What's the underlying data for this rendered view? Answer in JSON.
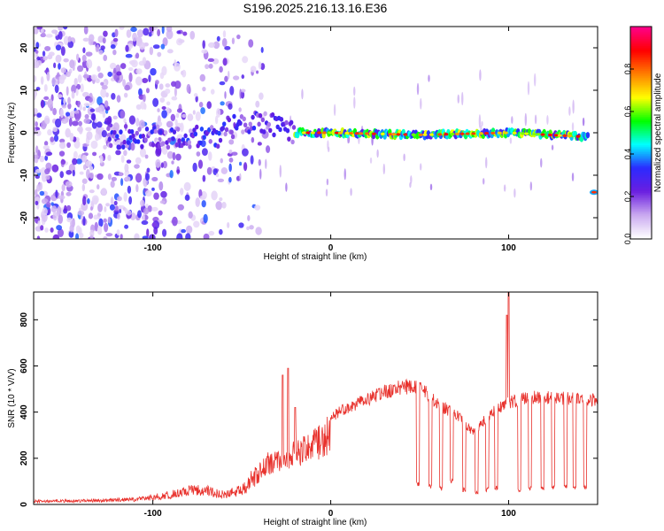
{
  "title": "S196.2025.216.13.16.E36",
  "chart_data": [
    {
      "type": "heatmap",
      "title": "S196.2025.216.13.16.E36",
      "xlabel": "Height of straight line (km)",
      "ylabel": "Frequency (Hz)",
      "xlim": [
        -167,
        150
      ],
      "ylim": [
        -25,
        25
      ],
      "x_ticks": [
        -100,
        0,
        100
      ],
      "y_ticks": [
        -20,
        -10,
        0,
        10,
        20
      ],
      "grid": false,
      "colorbar": {
        "label": "Normalized spectral amplitude",
        "range": [
          0,
          1
        ],
        "ticks": [
          "0.0",
          "0.2",
          "0.4",
          "0.6",
          "0.8"
        ],
        "colors": [
          "#ffffff",
          "#c9a8f0",
          "#6a1ee0",
          "#2b2bff",
          "#00ffff",
          "#00ff00",
          "#ffff00",
          "#ff8000",
          "#ff0000",
          "#ff0088"
        ]
      },
      "ridge": {
        "description_points": [
          {
            "x": -60,
            "y": 1
          },
          {
            "x": -40,
            "y": 3
          },
          {
            "x": -20,
            "y": 0
          },
          {
            "x": 0,
            "y": 0
          },
          {
            "x": 50,
            "y": -0.5
          },
          {
            "x": 100,
            "y": 0
          },
          {
            "x": 145,
            "y": -1
          }
        ],
        "tail_x": 148,
        "tail_y": -14
      },
      "noise_region": {
        "x": [
          -167,
          -50
        ],
        "y": [
          -25,
          25
        ]
      }
    },
    {
      "type": "line",
      "xlabel": "Height of straight line (km)",
      "ylabel": "SNR (10 * V/V)",
      "xlim": [
        -167,
        150
      ],
      "ylim": [
        0,
        920
      ],
      "x_ticks": [
        -100,
        0,
        100
      ],
      "y_ticks": [
        0,
        200,
        400,
        600,
        800
      ],
      "grid": false,
      "series": [
        {
          "color": "#e8312c",
          "envelope": [
            {
              "x": -167,
              "y": 20
            },
            {
              "x": -140,
              "y": 22
            },
            {
              "x": -110,
              "y": 30
            },
            {
              "x": -90,
              "y": 60
            },
            {
              "x": -75,
              "y": 95
            },
            {
              "x": -60,
              "y": 60
            },
            {
              "x": -50,
              "y": 90
            },
            {
              "x": -40,
              "y": 200
            },
            {
              "x": -30,
              "y": 260
            },
            {
              "x": -20,
              "y": 280
            },
            {
              "x": -10,
              "y": 330
            },
            {
              "x": 0,
              "y": 400
            },
            {
              "x": 10,
              "y": 450
            },
            {
              "x": 20,
              "y": 480
            },
            {
              "x": 30,
              "y": 520
            },
            {
              "x": 40,
              "y": 540
            },
            {
              "x": 50,
              "y": 545
            },
            {
              "x": 60,
              "y": 460
            },
            {
              "x": 70,
              "y": 420
            },
            {
              "x": 80,
              "y": 330
            },
            {
              "x": 90,
              "y": 420
            },
            {
              "x": 100,
              "y": 470
            },
            {
              "x": 110,
              "y": 490
            },
            {
              "x": 120,
              "y": 495
            },
            {
              "x": 130,
              "y": 490
            },
            {
              "x": 140,
              "y": 485
            },
            {
              "x": 150,
              "y": 480
            }
          ],
          "spikes": [
            {
              "x": -27,
              "y": 560
            },
            {
              "x": -24,
              "y": 590
            },
            {
              "x": -20,
              "y": 420
            },
            {
              "x": 100,
              "y": 920
            },
            {
              "x": 99,
              "y": 820
            }
          ],
          "dropouts": [
            {
              "x": 49,
              "y": 80
            },
            {
              "x": 56,
              "y": 70
            },
            {
              "x": 62,
              "y": 60
            },
            {
              "x": 68,
              "y": 90
            },
            {
              "x": 75,
              "y": 55
            },
            {
              "x": 82,
              "y": 40
            },
            {
              "x": 88,
              "y": 55
            },
            {
              "x": 93,
              "y": 60
            },
            {
              "x": 106,
              "y": 55
            },
            {
              "x": 112,
              "y": 60
            },
            {
              "x": 119,
              "y": 60
            },
            {
              "x": 125,
              "y": 65
            },
            {
              "x": 132,
              "y": 70
            },
            {
              "x": 137,
              "y": 60
            },
            {
              "x": 143,
              "y": 65
            }
          ]
        }
      ]
    }
  ]
}
